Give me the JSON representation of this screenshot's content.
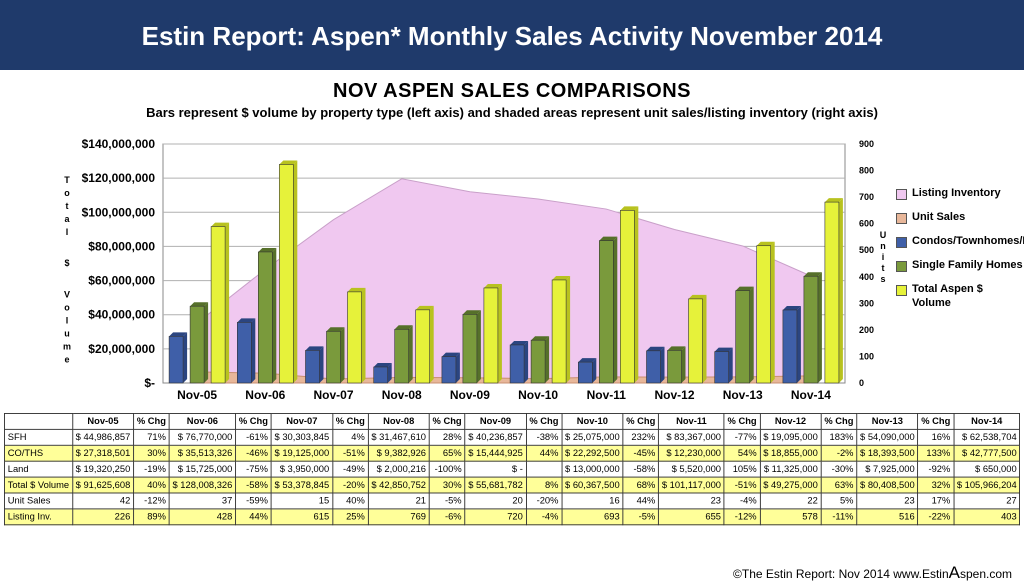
{
  "banner": {
    "title": "Estin Report: Aspen* Monthly Sales Activity November 2014"
  },
  "chart_data": {
    "type": "bar",
    "title": "NOV ASPEN SALES COMPARISONS",
    "subtitle": "Bars represent $ volume by property type (left axis) and shaded areas represent unit sales/listing inventory (right axis)",
    "ylabel": "Total $ Volume",
    "y2label": "Units",
    "categories": [
      "Nov-05",
      "Nov-06",
      "Nov-07",
      "Nov-08",
      "Nov-09",
      "Nov-10",
      "Nov-11",
      "Nov-12",
      "Nov-13",
      "Nov-14"
    ],
    "ylim": [
      0,
      140000000
    ],
    "y2lim": [
      0,
      900
    ],
    "y_ticks": [
      "$-",
      "$20,000,000",
      "$40,000,000",
      "$60,000,000",
      "$80,000,000",
      "$100,000,000",
      "$120,000,000",
      "$140,000,000"
    ],
    "y2_ticks": [
      "0",
      "100",
      "200",
      "300",
      "400",
      "500",
      "600",
      "700",
      "800",
      "900"
    ],
    "series": [
      {
        "name": "Condos/Townhomes/Duplexes",
        "axis": "left",
        "kind": "bar",
        "color": "#3f5fa8",
        "values": [
          27318501,
          35513326,
          19125000,
          9382926,
          15444925,
          22292500,
          12230000,
          18855000,
          18393500,
          42777500
        ]
      },
      {
        "name": "Single Family Homes",
        "axis": "left",
        "kind": "bar",
        "color": "#7a9a3c",
        "values": [
          44986857,
          76770000,
          30303845,
          31467610,
          40236857,
          25075000,
          83367000,
          19095000,
          54090000,
          62538704
        ]
      },
      {
        "name": "Total Aspen $ Volume",
        "axis": "left",
        "kind": "bar",
        "color": "#e6f23a",
        "values": [
          91625608,
          128008326,
          53378845,
          42850752,
          55681782,
          60367500,
          101117000,
          49275000,
          80408500,
          105966204
        ]
      },
      {
        "name": "Listing Inventory",
        "axis": "right",
        "kind": "area",
        "color": "#f0c8f0",
        "values": [
          226,
          428,
          615,
          769,
          720,
          693,
          655,
          578,
          516,
          403
        ]
      },
      {
        "name": "Unit Sales",
        "axis": "right",
        "kind": "area",
        "color": "#e8b79a",
        "values": [
          42,
          37,
          15,
          21,
          20,
          16,
          23,
          22,
          23,
          27
        ]
      }
    ],
    "legend": {
      "position": "right",
      "items": [
        {
          "label": "Listing Inventory",
          "color": "#f0c8f0"
        },
        {
          "label": "Unit Sales",
          "color": "#e8b79a"
        },
        {
          "label": "Condos/Townhomes/Duplexes",
          "color": "#3f5fa8"
        },
        {
          "label": "Single Family Homes",
          "color": "#7a9a3c"
        },
        {
          "label": "Total Aspen $ Volume",
          "color": "#e6f23a"
        }
      ]
    }
  },
  "table": {
    "headers": [
      "",
      "Nov-05",
      "% Chg",
      "Nov-06",
      "% Chg",
      "Nov-07",
      "% Chg",
      "Nov-08",
      "% Chg",
      "Nov-09",
      "% Chg",
      "Nov-10",
      "% Chg",
      "Nov-11",
      "% Chg",
      "Nov-12",
      "% Chg",
      "Nov-13",
      "% Chg",
      "Nov-14"
    ],
    "rows": [
      {
        "highlight": false,
        "cells": [
          "SFH",
          "$ 44,986,857",
          "71%",
          "$ 76,770,000",
          "-61%",
          "$ 30,303,845",
          "4%",
          "$ 31,467,610",
          "28%",
          "$ 40,236,857",
          "-38%",
          "$ 25,075,000",
          "232%",
          "$ 83,367,000",
          "-77%",
          "$ 19,095,000",
          "183%",
          "$ 54,090,000",
          "16%",
          "$ 62,538,704"
        ]
      },
      {
        "highlight": true,
        "cells": [
          "CO/THS",
          "$ 27,318,501",
          "30%",
          "$ 35,513,326",
          "-46%",
          "$ 19,125,000",
          "-51%",
          "$ 9,382,926",
          "65%",
          "$ 15,444,925",
          "44%",
          "$ 22,292,500",
          "-45%",
          "$ 12,230,000",
          "54%",
          "$ 18,855,000",
          "-2%",
          "$ 18,393,500",
          "133%",
          "$ 42,777,500"
        ]
      },
      {
        "highlight": false,
        "cells": [
          "Land",
          "$ 19,320,250",
          "-19%",
          "$ 15,725,000",
          "-75%",
          "$ 3,950,000",
          "-49%",
          "$ 2,000,216",
          "-100%",
          "$ -",
          "",
          "$ 13,000,000",
          "-58%",
          "$ 5,520,000",
          "105%",
          "$ 11,325,000",
          "-30%",
          "$ 7,925,000",
          "-92%",
          "$ 650,000"
        ]
      },
      {
        "highlight": true,
        "cells": [
          "Total $ Volume",
          "$ 91,625,608",
          "40%",
          "$ 128,008,326",
          "-58%",
          "$ 53,378,845",
          "-20%",
          "$ 42,850,752",
          "30%",
          "$ 55,681,782",
          "8%",
          "$ 60,367,500",
          "68%",
          "$ 101,117,000",
          "-51%",
          "$ 49,275,000",
          "63%",
          "$ 80,408,500",
          "32%",
          "$ 105,966,204"
        ]
      },
      {
        "highlight": false,
        "cells": [
          "Unit Sales",
          "42",
          "-12%",
          "37",
          "-59%",
          "15",
          "40%",
          "21",
          "-5%",
          "20",
          "-20%",
          "16",
          "44%",
          "23",
          "-4%",
          "22",
          "5%",
          "23",
          "17%",
          "27"
        ]
      },
      {
        "highlight": true,
        "cells": [
          "Listing Inv.",
          "226",
          "89%",
          "428",
          "44%",
          "615",
          "25%",
          "769",
          "-6%",
          "720",
          "-4%",
          "693",
          "-5%",
          "655",
          "-12%",
          "578",
          "-11%",
          "516",
          "-22%",
          "403"
        ]
      }
    ]
  },
  "footer": {
    "prefix": "©The Estin Report: Nov 2014  www.Estin",
    "big": "A",
    "suffix": "spen.com"
  }
}
